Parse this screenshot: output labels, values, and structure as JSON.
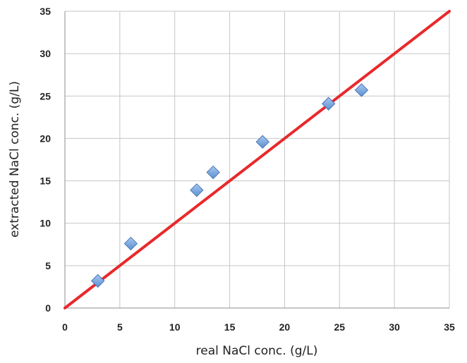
{
  "chart_data": {
    "type": "scatter",
    "title": "",
    "xlabel": "real NaCl conc. (g/L)",
    "ylabel": "extracted NaCl conc. (g/L)",
    "xlim": [
      0,
      35
    ],
    "ylim": [
      0,
      35
    ],
    "xticks": [
      "0",
      "5",
      "10",
      "15",
      "20",
      "25",
      "30",
      "35"
    ],
    "yticks": [
      "0",
      "5",
      "10",
      "15",
      "20",
      "25",
      "30",
      "35"
    ],
    "grid": true,
    "legend": "none",
    "series": [
      {
        "marker": "diamond",
        "color": "#5b8fd1",
        "points": [
          {
            "x": 3,
            "y": 3.2
          },
          {
            "x": 6,
            "y": 7.6
          },
          {
            "x": 12,
            "y": 13.9
          },
          {
            "x": 13.5,
            "y": 16.0
          },
          {
            "x": 18,
            "y": 19.6
          },
          {
            "x": 24,
            "y": 24.1
          },
          {
            "x": 27,
            "y": 25.7
          }
        ]
      }
    ],
    "reference_line": {
      "color": "#e8292b",
      "points": [
        {
          "x": 0,
          "y": 0
        },
        {
          "x": 35,
          "y": 35
        }
      ]
    }
  }
}
